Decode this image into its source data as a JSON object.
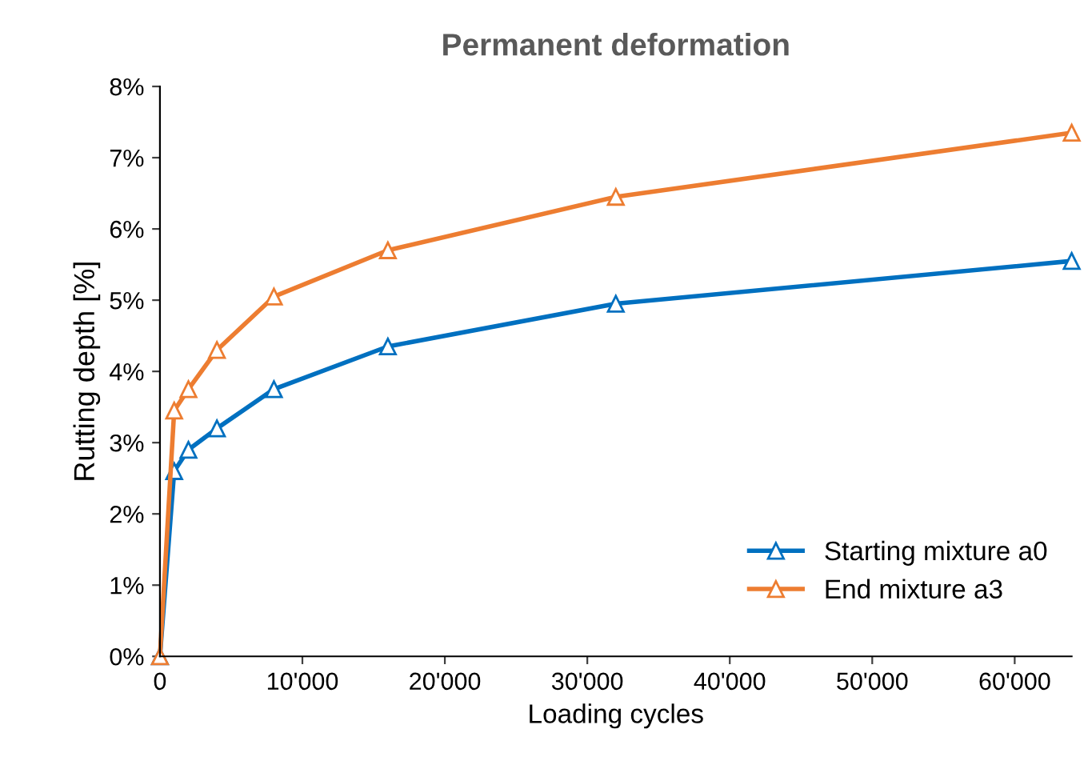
{
  "chart_data": {
    "type": "line",
    "title": "Permanent deformation",
    "xlabel": "Loading cycles",
    "ylabel": "Rutting depth [%]",
    "x": [
      0,
      1000,
      2000,
      4000,
      8000,
      16000,
      32000,
      64000
    ],
    "series": [
      {
        "name": "Starting mixture a0",
        "color": "#0070c0",
        "values": [
          0,
          2.6,
          2.9,
          3.2,
          3.75,
          4.35,
          4.95,
          5.55
        ]
      },
      {
        "name": "End mixture a3",
        "color": "#ed7d31",
        "values": [
          0,
          3.45,
          3.75,
          4.3,
          5.05,
          5.7,
          6.45,
          7.35
        ]
      }
    ],
    "xlim": [
      0,
      64000
    ],
    "ylim": [
      0,
      8
    ],
    "xticks": [
      {
        "value": 0,
        "label": "0"
      },
      {
        "value": 10000,
        "label": "10'000"
      },
      {
        "value": 20000,
        "label": "20'000"
      },
      {
        "value": 30000,
        "label": "30'000"
      },
      {
        "value": 40000,
        "label": "40'000"
      },
      {
        "value": 50000,
        "label": "50'000"
      },
      {
        "value": 60000,
        "label": "60'000"
      }
    ],
    "yticks": [
      {
        "value": 0,
        "label": "0%"
      },
      {
        "value": 1,
        "label": "1%"
      },
      {
        "value": 2,
        "label": "2%"
      },
      {
        "value": 3,
        "label": "3%"
      },
      {
        "value": 4,
        "label": "4%"
      },
      {
        "value": 5,
        "label": "5%"
      },
      {
        "value": 6,
        "label": "6%"
      },
      {
        "value": 7,
        "label": "7%"
      },
      {
        "value": 8,
        "label": "8%"
      }
    ],
    "marker": "triangle",
    "line_style": "solid",
    "grid": false,
    "legend": "bottom right"
  }
}
